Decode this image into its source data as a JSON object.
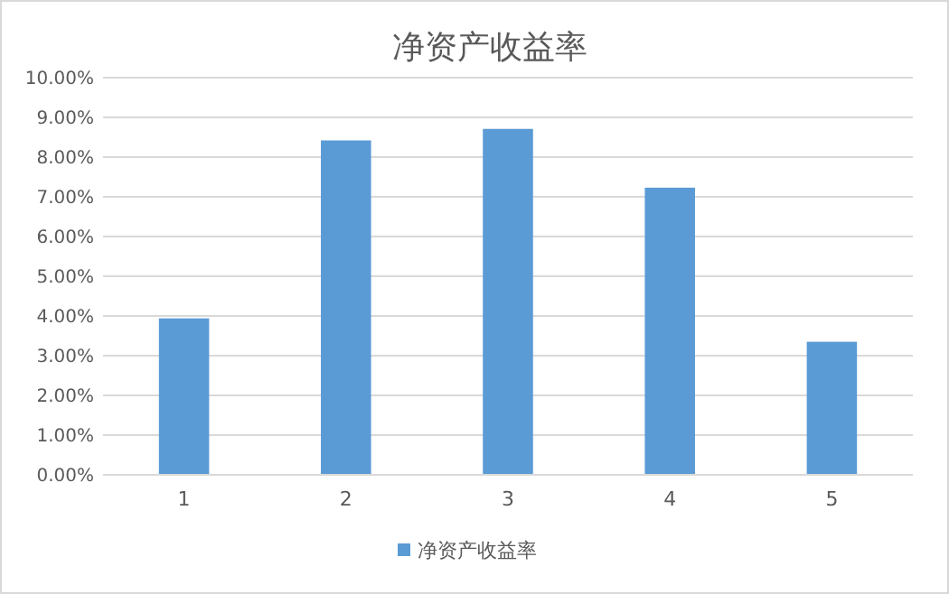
{
  "chart_data": {
    "type": "bar",
    "title": "净资产收益率",
    "categories": [
      "1",
      "2",
      "3",
      "4",
      "5"
    ],
    "series": [
      {
        "name": "净资产收益率",
        "color": "#5b9bd5",
        "values": [
          3.94,
          8.42,
          8.71,
          7.23,
          3.35
        ]
      }
    ],
    "ylim": [
      0,
      10
    ],
    "yticks": [
      {
        "value": 0,
        "label": "0.00%"
      },
      {
        "value": 1,
        "label": "1.00%"
      },
      {
        "value": 2,
        "label": "2.00%"
      },
      {
        "value": 3,
        "label": "3.00%"
      },
      {
        "value": 4,
        "label": "4.00%"
      },
      {
        "value": 5,
        "label": "5.00%"
      },
      {
        "value": 6,
        "label": "6.00%"
      },
      {
        "value": 7,
        "label": "7.00%"
      },
      {
        "value": 8,
        "label": "8.00%"
      },
      {
        "value": 9,
        "label": "9.00%"
      },
      {
        "value": 10,
        "label": "10.00%"
      }
    ],
    "grid": "y",
    "legend": "bottom"
  }
}
